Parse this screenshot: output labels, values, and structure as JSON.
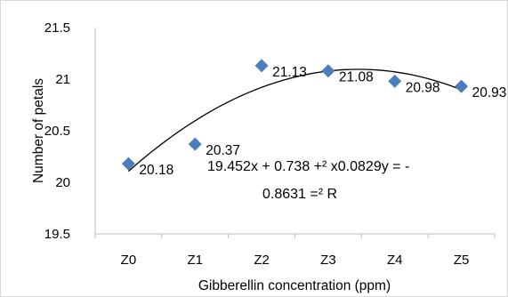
{
  "chart_data": {
    "type": "scatter",
    "xlabel": "Gibberellin concentration (ppm)",
    "ylabel": "Number of petals",
    "categories": [
      "Z0",
      "Z1",
      "Z2",
      "Z3",
      "Z4",
      "Z5"
    ],
    "yticks": [
      "19.5",
      "20",
      "20.5",
      "21",
      "21.5"
    ],
    "ylim": [
      19.5,
      21.5
    ],
    "grid": false,
    "legend": "none",
    "marker": "diamond",
    "marker_color": "#4a7ebb",
    "series": [
      {
        "values": [
          20.18,
          20.37,
          21.13,
          21.08,
          20.98,
          20.93
        ],
        "labels": [
          "20.18",
          "20.37",
          "21.13",
          "21.08",
          "20.98",
          "20.93"
        ]
      }
    ],
    "trendline": {
      "type": "polynomial",
      "order": 2,
      "equation_line1": "19.452x + 0.738 +² x0.0829y = -",
      "equation_line2": "0.8631 =² R"
    }
  }
}
